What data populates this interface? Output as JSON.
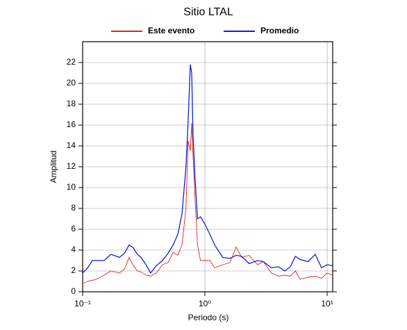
{
  "chart_data": {
    "type": "line",
    "title": "Sitio LTAL",
    "xlabel": "Periodo (s)",
    "ylabel": "Amplitud",
    "xscale": "log",
    "grid": true,
    "legend": "top",
    "xlim": [
      0.1,
      11.1
    ],
    "ylim": [
      0,
      24
    ],
    "xticks": [
      {
        "value": 0.1,
        "label": "10⁻¹"
      },
      {
        "value": 1,
        "label": "10⁰"
      },
      {
        "value": 10,
        "label": "10¹"
      }
    ],
    "yticks": [
      0,
      2,
      4,
      6,
      8,
      10,
      12,
      14,
      16,
      18,
      20,
      22
    ],
    "x": [
      0.1,
      0.11,
      0.12,
      0.13,
      0.15,
      0.17,
      0.2,
      0.22,
      0.24,
      0.26,
      0.28,
      0.3,
      0.33,
      0.36,
      0.4,
      0.45,
      0.5,
      0.55,
      0.6,
      0.65,
      0.7,
      0.73,
      0.76,
      0.78,
      0.8,
      0.83,
      0.87,
      0.92,
      1.0,
      1.1,
      1.2,
      1.4,
      1.6,
      1.8,
      2.0,
      2.3,
      2.7,
      3.0,
      3.5,
      4,
      4.5,
      5,
      5.5,
      6,
      7,
      8,
      9,
      10,
      11.1
    ],
    "series": [
      {
        "name": "Este evento",
        "color": "#e8201c",
        "values": [
          0.8,
          1.0,
          1.1,
          1.2,
          1.6,
          2.0,
          1.8,
          2.2,
          3.3,
          2.5,
          2.0,
          1.9,
          1.6,
          1.5,
          1.8,
          2.6,
          2.8,
          3.8,
          3.5,
          4.5,
          8,
          14.5,
          13.5,
          16.2,
          13,
          9,
          4.5,
          3.0,
          3.0,
          3.0,
          2.3,
          2.6,
          2.8,
          4.3,
          3.3,
          3.5,
          2.6,
          2.9,
          1.8,
          1.5,
          1.6,
          1.5,
          2.0,
          1.2,
          1.4,
          1.5,
          1.3,
          1.8,
          1.6
        ]
      },
      {
        "name": "Promedio",
        "color": "#1020d8",
        "values": [
          1.8,
          2.3,
          3.0,
          3.0,
          3.0,
          3.6,
          3.3,
          3.7,
          4.5,
          4.2,
          3.6,
          3.3,
          2.6,
          1.8,
          2.5,
          3.0,
          3.7,
          4.5,
          5.5,
          7.5,
          12,
          16.5,
          21.8,
          21,
          15,
          11,
          7,
          7.2,
          6.5,
          5.5,
          4.5,
          3.3,
          3.2,
          3.5,
          3.4,
          2.7,
          3.0,
          2.9,
          2.3,
          2.4,
          2.0,
          2.4,
          3.4,
          3.1,
          2.9,
          3.6,
          2.3,
          2.6,
          2.5
        ]
      }
    ]
  }
}
